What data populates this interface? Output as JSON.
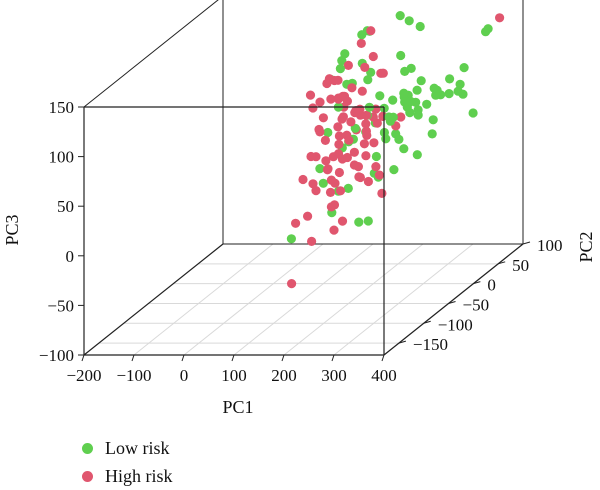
{
  "chart_data": {
    "type": "scatter3d",
    "xlabel": "PC1",
    "ylabel": "PC2",
    "zlabel": "PC3",
    "xlim": [
      -200,
      400
    ],
    "ylim": [
      -180,
      100
    ],
    "zlim": [
      -100,
      150
    ],
    "x_ticks": [
      "−200",
      "−100",
      "0",
      "100",
      "200",
      "300",
      "400"
    ],
    "y_ticks": [
      "−150",
      "−100",
      "−50",
      "0",
      "50",
      "100"
    ],
    "z_ticks": [
      "−100",
      "−50",
      "0",
      "50",
      "100",
      "150"
    ],
    "grid": true,
    "legend_position": "bottom-left",
    "colors": {
      "low": "#5fcf4f",
      "high": "#e0566e"
    },
    "series": [
      {
        "name": "Low risk",
        "color": "#5fcf4f",
        "points": [
          [
            158,
            30,
            143
          ],
          [
            167,
            10,
            147
          ],
          [
            152,
            41,
            138
          ],
          [
            206,
            48,
            151
          ],
          [
            222,
            50,
            145
          ],
          [
            246,
            48,
            140
          ],
          [
            116,
            27,
            121
          ],
          [
            120,
            17,
            118
          ],
          [
            142,
            -8,
            120
          ],
          [
            153,
            25,
            112
          ],
          [
            113,
            2,
            105
          ],
          [
            205,
            50,
            110
          ],
          [
            236,
            40,
            101
          ],
          [
            252,
            44,
            87
          ],
          [
            223,
            40,
            98
          ],
          [
            175,
            14,
            100
          ],
          [
            128,
            30,
            90
          ],
          [
            132,
            15,
            95
          ],
          [
            160,
            35,
            99
          ],
          [
            266,
            9,
            80
          ],
          [
            210,
            -18,
            85
          ],
          [
            130,
            0,
            78
          ],
          [
            192,
            21,
            81
          ],
          [
            268,
            60,
            71
          ],
          [
            236,
            25,
            82
          ],
          [
            305,
            77,
            87
          ],
          [
            292,
            61,
            82
          ],
          [
            246,
            -24,
            62
          ],
          [
            288,
            64,
            66
          ],
          [
            258,
            10,
            74
          ],
          [
            225,
            45,
            72
          ],
          [
            272,
            50,
            77
          ],
          [
            214,
            48,
            69
          ],
          [
            285,
            85,
            60
          ],
          [
            199,
            40,
            69
          ],
          [
            223,
            17,
            61
          ],
          [
            228,
            35,
            69
          ],
          [
            257,
            16,
            66
          ],
          [
            309,
            65,
            75
          ],
          [
            275,
            32,
            68
          ],
          [
            241,
            -10,
            72
          ],
          [
            223,
            65,
            69
          ],
          [
            176,
            12,
            65
          ],
          [
            270,
            55,
            68
          ],
          [
            243,
            42,
            66
          ],
          [
            269,
            66,
            64
          ],
          [
            232,
            2,
            63
          ],
          [
            232,
            58,
            52
          ],
          [
            179,
            25,
            52
          ],
          [
            250,
            1,
            45
          ],
          [
            215,
            10,
            42
          ],
          [
            150,
            14,
            51
          ],
          [
            121,
            17,
            30
          ],
          [
            282,
            38,
            50
          ],
          [
            171,
            -11,
            50
          ],
          [
            246,
            15,
            30
          ],
          [
            210,
            35,
            37
          ],
          [
            88,
            21,
            44
          ],
          [
            101,
            50,
            23
          ],
          [
            218,
            -12,
            33
          ],
          [
            235,
            55,
            48
          ],
          [
            290,
            90,
            55
          ],
          [
            103,
            -10,
            20
          ],
          [
            278,
            40,
            35
          ],
          [
            320,
            80,
            40
          ],
          [
            92,
            8,
            -2
          ],
          [
            184,
            26,
            -3
          ],
          [
            137,
            -7,
            -4
          ],
          [
            130,
            20,
            -12
          ],
          [
            98,
            19,
            -36
          ],
          [
            166,
            5,
            -40
          ],
          [
            172,
            18,
            -44
          ],
          [
            246,
            -5,
            17
          ],
          [
            140,
            45,
            35
          ],
          [
            58,
            -22,
            -46
          ],
          [
            194,
            8,
            8
          ],
          [
            180,
            42,
            60
          ],
          [
            258,
            30,
            18
          ],
          [
            350,
            80,
            125
          ],
          [
            340,
            85,
            120
          ]
        ]
      },
      {
        "name": "High risk",
        "color": "#e0566e",
        "points": [
          [
            215,
            66,
            169
          ],
          [
            165,
            30,
            143
          ],
          [
            148,
            28,
            131
          ],
          [
            164,
            -35,
            119
          ],
          [
            178,
            5,
            116
          ],
          [
            123,
            -11,
            111
          ],
          [
            109,
            -35,
            104
          ],
          [
            150,
            0,
            120
          ],
          [
            180,
            20,
            121
          ],
          [
            120,
            -13,
            107
          ],
          [
            135,
            -13,
            110
          ],
          [
            123,
            -30,
            95
          ],
          [
            170,
            -28,
            100
          ],
          [
            166,
            -9,
            101
          ],
          [
            135,
            -20,
            94
          ],
          [
            192,
            28,
            101
          ],
          [
            210,
            5,
            110
          ],
          [
            147,
            -8,
            92
          ],
          [
            130,
            0,
            87
          ],
          [
            158,
            -10,
            88
          ],
          [
            184,
            -19,
            82
          ],
          [
            104,
            -25,
            87
          ],
          [
            158,
            20,
            86
          ],
          [
            140,
            -10,
            90
          ],
          [
            167,
            -30,
            78
          ],
          [
            122,
            -22,
            76
          ],
          [
            176,
            -3,
            77
          ],
          [
            182,
            4,
            68
          ],
          [
            147,
            -7,
            71
          ],
          [
            131,
            10,
            74
          ],
          [
            210,
            9,
            65
          ],
          [
            165,
            -10,
            67
          ],
          [
            120,
            -29,
            67
          ],
          [
            149,
            -20,
            66
          ],
          [
            172,
            2,
            69
          ],
          [
            118,
            -25,
            63
          ],
          [
            185,
            15,
            62
          ],
          [
            142,
            21,
            64
          ],
          [
            175,
            30,
            64
          ],
          [
            196,
            12,
            57
          ],
          [
            150,
            -18,
            56
          ],
          [
            197,
            -11,
            58
          ],
          [
            235,
            10,
            55
          ],
          [
            225,
            30,
            56
          ],
          [
            165,
            20,
            53
          ],
          [
            172,
            -21,
            53
          ],
          [
            145,
            -14,
            46
          ],
          [
            117,
            -42,
            45
          ],
          [
            128,
            -24,
            54
          ],
          [
            138,
            9,
            46
          ],
          [
            187,
            -5,
            43
          ],
          [
            211,
            -10,
            46
          ],
          [
            160,
            -30,
            43
          ],
          [
            176,
            11,
            45
          ],
          [
            146,
            20,
            47
          ],
          [
            152,
            -43,
            33
          ],
          [
            140,
            -20,
            36
          ],
          [
            165,
            -17,
            34
          ],
          [
            195,
            -10,
            33
          ],
          [
            161,
            1,
            32
          ],
          [
            128,
            -23,
            33
          ],
          [
            144,
            -6,
            28
          ],
          [
            136,
            -28,
            26
          ],
          [
            183,
            -21,
            28
          ],
          [
            133,
            -48,
            13
          ],
          [
            160,
            -37,
            16
          ],
          [
            187,
            -16,
            14
          ],
          [
            226,
            -14,
            15
          ],
          [
            194,
            -20,
            15
          ],
          [
            152,
            -20,
            20
          ],
          [
            170,
            0,
            18
          ],
          [
            115,
            -36,
            15
          ],
          [
            104,
            -45,
            23
          ],
          [
            154,
            -40,
            8
          ],
          [
            170,
            -36,
            8
          ],
          [
            195,
            -5,
            5
          ],
          [
            156,
            -34,
            -7
          ],
          [
            232,
            -15,
            -3
          ],
          [
            140,
            -24,
            -13
          ],
          [
            107,
            -63,
            -14
          ],
          [
            123,
            -55,
            -10
          ],
          [
            142,
            -66,
            -31
          ],
          [
            178,
            -40,
            -21
          ],
          [
            161,
            -40,
            -30
          ],
          [
            91,
            -55,
            -78
          ],
          [
            130,
            -14,
            10
          ],
          [
            210,
            -5,
            20
          ],
          [
            115,
            -30,
            40
          ],
          [
            383,
            70,
            140
          ]
        ]
      }
    ]
  }
}
